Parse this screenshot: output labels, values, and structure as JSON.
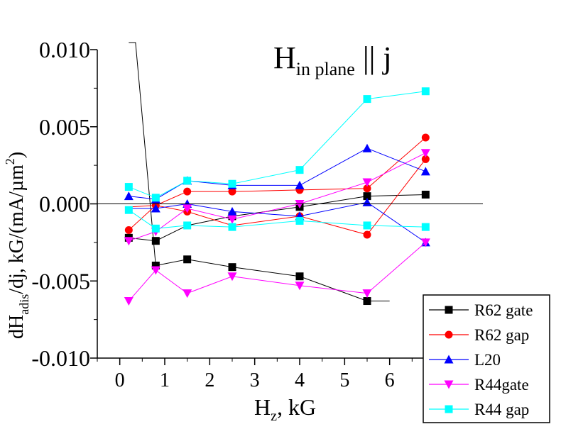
{
  "chart_data": {
    "type": "line",
    "title_main": "H",
    "title_sub": "in plane",
    "title_tail": " || j",
    "xlabel_main": "H",
    "xlabel_sub": "z",
    "xlabel_tail": ", kG",
    "ylabel_prefix": "dH",
    "ylabel_sub": "adis",
    "ylabel_mid": "/dj, kG/(mA/µm",
    "ylabel_sup": "2",
    "ylabel_end": ")",
    "xlim": [
      -0.5,
      7.0
    ],
    "ylim": [
      -0.01,
      0.01
    ],
    "x_ticks": [
      0,
      1,
      2,
      3,
      4,
      5,
      6
    ],
    "x_tick_labels": [
      "0",
      "1",
      "2",
      "3",
      "4",
      "5",
      "6"
    ],
    "y_ticks": [
      0.01,
      0.005,
      0.0,
      -0.005,
      -0.01
    ],
    "y_tick_labels": [
      "0.010",
      "0.005",
      "0.000",
      "-0.005",
      "-0.010"
    ],
    "zero_line": true,
    "grid": false,
    "legend_position": "bottom-right",
    "series": [
      {
        "name": "R62 gate",
        "color": "#000000",
        "marker": "square",
        "lines": [
          [
            [
              0.2,
              0.0105
            ],
            [
              0.35,
              0.0105
            ],
            [
              0.8,
              -0.004
            ],
            [
              1.5,
              -0.0036
            ],
            [
              2.5,
              -0.0041
            ],
            [
              4.0,
              -0.0047
            ],
            [
              5.5,
              -0.0063
            ],
            [
              6.0,
              -0.0063
            ]
          ],
          [
            [
              0.2,
              -0.0022
            ],
            [
              0.8,
              -0.0024
            ],
            [
              1.5,
              -0.0014
            ],
            [
              2.5,
              -0.0008
            ],
            [
              4.0,
              -0.0002
            ],
            [
              5.5,
              0.0005
            ],
            [
              6.8,
              0.0006
            ]
          ]
        ],
        "points": [
          [
            0.8,
            -0.004
          ],
          [
            1.5,
            -0.0036
          ],
          [
            2.5,
            -0.0041
          ],
          [
            4.0,
            -0.0047
          ],
          [
            5.5,
            -0.0063
          ],
          [
            0.2,
            -0.0022
          ],
          [
            0.8,
            -0.0024
          ],
          [
            2.5,
            -0.0008
          ],
          [
            4.0,
            -0.0002
          ],
          [
            5.5,
            0.0005
          ],
          [
            6.8,
            0.0006
          ]
        ]
      },
      {
        "name": "R62 gap",
        "color": "#ff0000",
        "marker": "circle",
        "lines": [
          [
            [
              0.2,
              -0.0017
            ],
            [
              0.8,
              -0.0001
            ],
            [
              1.5,
              0.0008
            ],
            [
              2.5,
              0.0008
            ],
            [
              4.0,
              0.0009
            ],
            [
              5.5,
              0.001
            ],
            [
              6.8,
              0.0043
            ]
          ],
          [
            [
              0.2,
              -0.0002
            ],
            [
              0.8,
              -0.0001
            ],
            [
              1.5,
              -0.0005
            ],
            [
              2.5,
              -0.0014
            ],
            [
              4.0,
              -0.0008
            ],
            [
              5.5,
              -0.002
            ],
            [
              6.8,
              0.0029
            ]
          ]
        ],
        "points": [
          [
            0.2,
            -0.0017
          ],
          [
            0.8,
            -0.0001
          ],
          [
            1.5,
            0.0008
          ],
          [
            2.5,
            0.0008
          ],
          [
            4.0,
            0.0009
          ],
          [
            5.5,
            0.001
          ],
          [
            6.8,
            0.0043
          ],
          [
            1.5,
            -0.0005
          ],
          [
            4.0,
            -0.0008
          ],
          [
            5.5,
            -0.002
          ],
          [
            6.8,
            0.0029
          ]
        ]
      },
      {
        "name": "L20",
        "color": "#0000ff",
        "marker": "triangle-up",
        "lines": [
          [
            [
              0.2,
              0.0005
            ],
            [
              0.8,
              0.0003
            ],
            [
              1.5,
              0.0015
            ],
            [
              2.5,
              0.0012
            ],
            [
              4.0,
              0.0012
            ],
            [
              5.5,
              0.0036
            ],
            [
              6.8,
              0.0021
            ]
          ],
          [
            [
              0.2,
              -0.0003
            ],
            [
              0.8,
              -0.0003
            ],
            [
              1.5,
              0.0
            ],
            [
              2.5,
              -0.0005
            ],
            [
              4.0,
              -0.0008
            ],
            [
              5.5,
              0.0001
            ],
            [
              6.8,
              -0.0025
            ]
          ]
        ],
        "points": [
          [
            0.2,
            0.0005
          ],
          [
            0.8,
            0.0003
          ],
          [
            1.5,
            0.0015
          ],
          [
            2.5,
            0.0012
          ],
          [
            4.0,
            0.0012
          ],
          [
            5.5,
            0.0036
          ],
          [
            6.8,
            0.0021
          ],
          [
            0.8,
            -0.0003
          ],
          [
            1.5,
            0.0
          ],
          [
            2.5,
            -0.0005
          ],
          [
            4.0,
            -0.0008
          ],
          [
            5.5,
            0.0001
          ],
          [
            6.8,
            -0.0025
          ]
        ]
      },
      {
        "name": "R44gate",
        "color": "#ff00ff",
        "marker": "triangle-down",
        "lines": [
          [
            [
              0.2,
              -0.0024
            ],
            [
              0.8,
              -0.0018
            ],
            [
              1.5,
              -0.0003
            ],
            [
              2.5,
              -0.001
            ],
            [
              4.0,
              0.0
            ],
            [
              5.5,
              0.0014
            ],
            [
              6.8,
              0.0033
            ]
          ],
          [
            [
              0.2,
              -0.0063
            ],
            [
              0.8,
              -0.0043
            ],
            [
              1.5,
              -0.0058
            ],
            [
              2.5,
              -0.0047
            ],
            [
              4.0,
              -0.0053
            ],
            [
              5.5,
              -0.0058
            ],
            [
              6.8,
              -0.0025
            ]
          ]
        ],
        "points": [
          [
            0.2,
            -0.0024
          ],
          [
            0.8,
            -0.0018
          ],
          [
            1.5,
            -0.0003
          ],
          [
            2.5,
            -0.001
          ],
          [
            4.0,
            0.0
          ],
          [
            5.5,
            0.0014
          ],
          [
            6.8,
            0.0033
          ],
          [
            0.2,
            -0.0063
          ],
          [
            0.8,
            -0.0043
          ],
          [
            1.5,
            -0.0058
          ],
          [
            2.5,
            -0.0047
          ],
          [
            4.0,
            -0.0053
          ],
          [
            5.5,
            -0.0058
          ],
          [
            6.8,
            -0.0025
          ]
        ]
      },
      {
        "name": "R44 gap",
        "color": "#00ffff",
        "marker": "square",
        "lines": [
          [
            [
              0.2,
              0.0011
            ],
            [
              0.8,
              0.0004
            ],
            [
              1.5,
              0.0015
            ],
            [
              2.5,
              0.0013
            ],
            [
              4.0,
              0.0022
            ],
            [
              5.5,
              0.0068
            ],
            [
              6.8,
              0.0073
            ]
          ],
          [
            [
              0.2,
              -0.0004
            ],
            [
              0.8,
              -0.0016
            ],
            [
              1.5,
              -0.0014
            ],
            [
              2.5,
              -0.0015
            ],
            [
              4.0,
              -0.0011
            ],
            [
              5.5,
              -0.0014
            ],
            [
              6.8,
              -0.0015
            ]
          ]
        ],
        "points": [
          [
            0.2,
            0.0011
          ],
          [
            0.8,
            0.0004
          ],
          [
            1.5,
            0.0015
          ],
          [
            2.5,
            0.0013
          ],
          [
            4.0,
            0.0022
          ],
          [
            5.5,
            0.0068
          ],
          [
            6.8,
            0.0073
          ],
          [
            0.2,
            -0.0004
          ],
          [
            0.8,
            -0.0016
          ],
          [
            1.5,
            -0.0014
          ],
          [
            2.5,
            -0.0015
          ],
          [
            4.0,
            -0.0011
          ],
          [
            5.5,
            -0.0014
          ],
          [
            6.8,
            -0.0015
          ]
        ]
      }
    ]
  }
}
